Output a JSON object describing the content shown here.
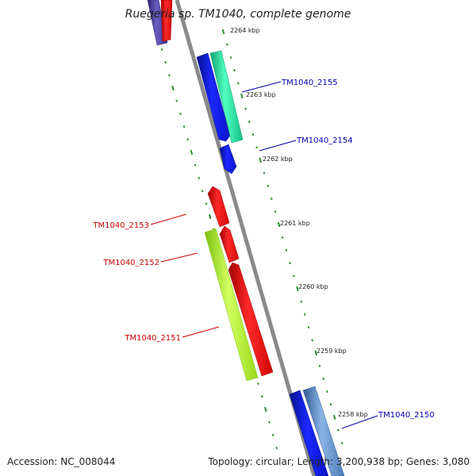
{
  "title": "Ruegeria sp. TM1040, complete genome",
  "footer": {
    "accession": "Accession: NC_008044",
    "info": "Topology: circular; Length: 3,200,938 bp; Genes: 3,080"
  },
  "scale_labels": [
    "2264 kbp",
    "2263 kbp",
    "2262 kbp",
    "2261 kbp",
    "2260 kbp",
    "2259 kbp",
    "2258 kbp"
  ],
  "gene_labels": [
    "TM1040_2155",
    "TM1040_2154",
    "TM1040_2153",
    "TM1040_2152",
    "TM1040_2151",
    "TM1040_2150"
  ],
  "colors": {
    "backbone": "#8a8a8a",
    "tick": "#2e8b2e",
    "forward_label": "#0000aa",
    "reverse_label": "#cc0000",
    "blue": "#0a14e6",
    "teal": "#1ee6a0",
    "red": "#f50a0a",
    "lime": "#b4ff28",
    "navy": "#4a3f9e",
    "steel": "#5a8cc8"
  }
}
